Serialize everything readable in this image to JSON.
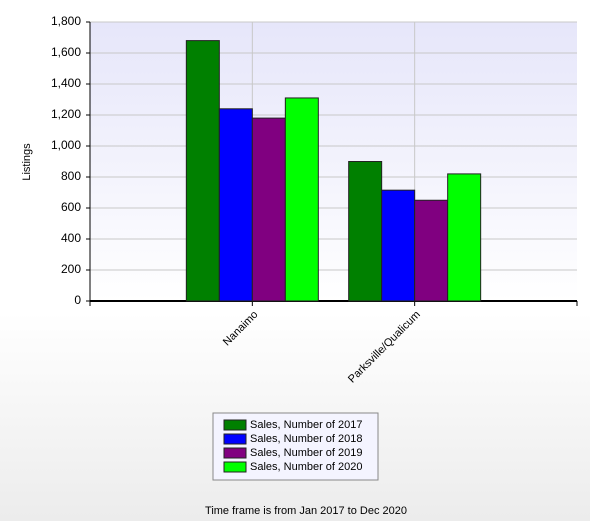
{
  "chart_data": {
    "type": "bar",
    "y_label": "Listings",
    "categories": [
      "Nanaimo",
      "Parksville/Qualicum"
    ],
    "series": [
      {
        "name": "Sales, Number of 2017",
        "color": "#008000",
        "values": [
          1680,
          900
        ]
      },
      {
        "name": "Sales, Number of 2018",
        "color": "#0000ff",
        "values": [
          1240,
          715
        ]
      },
      {
        "name": "Sales, Number of 2019",
        "color": "#800080",
        "values": [
          1180,
          650
        ]
      },
      {
        "name": "Sales, Number of 2020",
        "color": "#00ff00",
        "values": [
          1310,
          820
        ]
      }
    ],
    "ylim": [
      0,
      1800
    ],
    "yticks": [
      0,
      200,
      400,
      600,
      800,
      {
        "value": 1000,
        "label": "1,000"
      },
      {
        "value": 1200,
        "label": "1,200"
      },
      {
        "value": 1400,
        "label": "1,400"
      },
      {
        "value": 1600,
        "label": "1,600"
      },
      {
        "value": 1800,
        "label": "1,800"
      }
    ],
    "grid": true,
    "footnote": "Time frame is from Jan 2017 to Dec 2020"
  }
}
